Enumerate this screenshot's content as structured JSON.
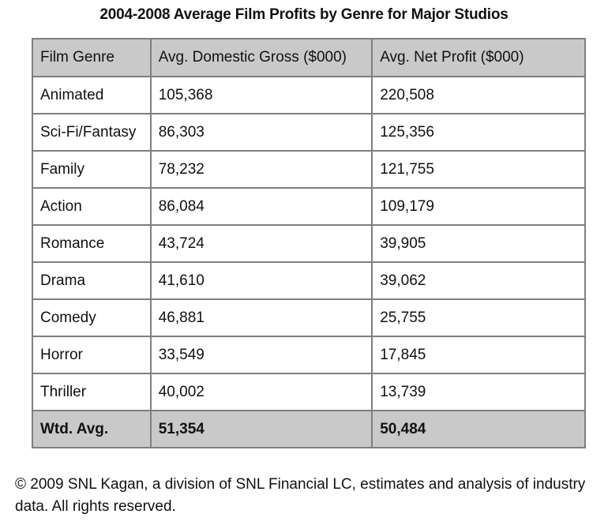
{
  "chart_data": {
    "type": "table",
    "title": "2004-2008 Average Film Profits by Genre for Major Studios",
    "columns": [
      "Film Genre",
      "Avg. Domestic Gross ($000)",
      "Avg. Net Profit ($000)"
    ],
    "rows": [
      {
        "genre": "Animated",
        "gross": "105,368",
        "profit": "220,508"
      },
      {
        "genre": "Sci-Fi/Fantasy",
        "gross": "86,303",
        "profit": "125,356"
      },
      {
        "genre": "Family",
        "gross": "78,232",
        "profit": "121,755"
      },
      {
        "genre": "Action",
        "gross": "86,084",
        "profit": "109,179"
      },
      {
        "genre": "Romance",
        "gross": "43,724",
        "profit": "39,905"
      },
      {
        "genre": "Drama",
        "gross": "41,610",
        "profit": "39,062"
      },
      {
        "genre": "Comedy",
        "gross": "46,881",
        "profit": "25,755"
      },
      {
        "genre": "Horror",
        "gross": "33,549",
        "profit": "17,845"
      },
      {
        "genre": "Thriller",
        "gross": "40,002",
        "profit": "13,739"
      }
    ],
    "total": {
      "genre": "Wtd. Avg.",
      "gross": "51,354",
      "profit": "50,484"
    },
    "footnote": "© 2009 SNL Kagan, a division of SNL Financial LC, estimates and analysis of industry data. All rights reserved."
  },
  "colors": {
    "header_bg": "#c9c9c9",
    "border": "#7f7f7f",
    "text": "#111111"
  }
}
